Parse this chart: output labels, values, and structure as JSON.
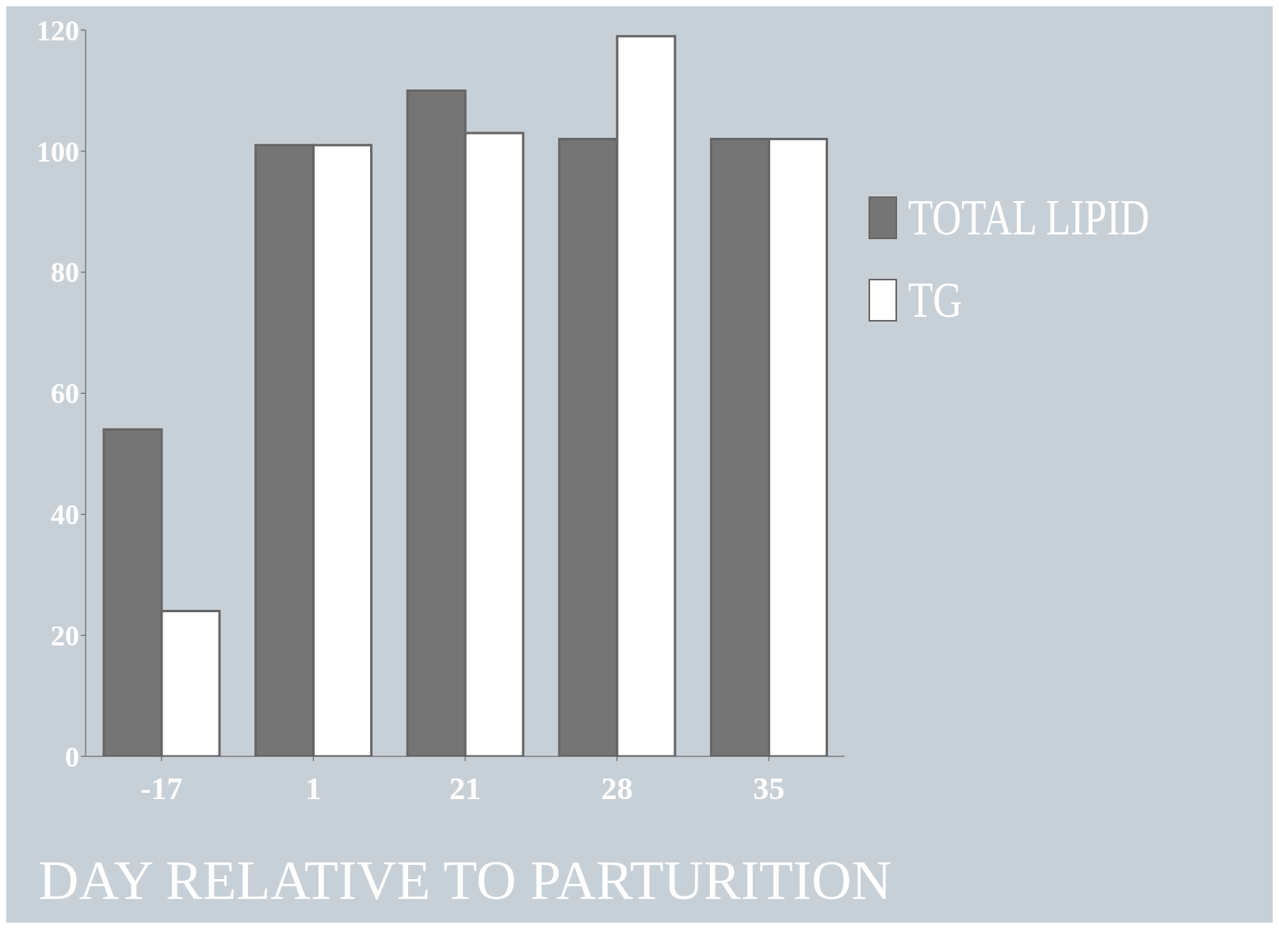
{
  "chart_data": {
    "type": "bar",
    "xlabel": "DAY RELATIVE TO PARTURITION",
    "categories": [
      "-17",
      "1",
      "21",
      "28",
      "35"
    ],
    "series": [
      {
        "name": "TOTAL LIPID",
        "color": "#757575",
        "values": [
          54,
          101,
          110,
          102,
          102
        ]
      },
      {
        "name": "TG",
        "color": "#ffffff",
        "values": [
          24,
          101,
          103,
          119,
          102
        ]
      }
    ],
    "ylim": [
      0,
      120
    ],
    "yticks": [
      0,
      20,
      40,
      60,
      80,
      100,
      120
    ],
    "legend": "right",
    "grid": false
  }
}
